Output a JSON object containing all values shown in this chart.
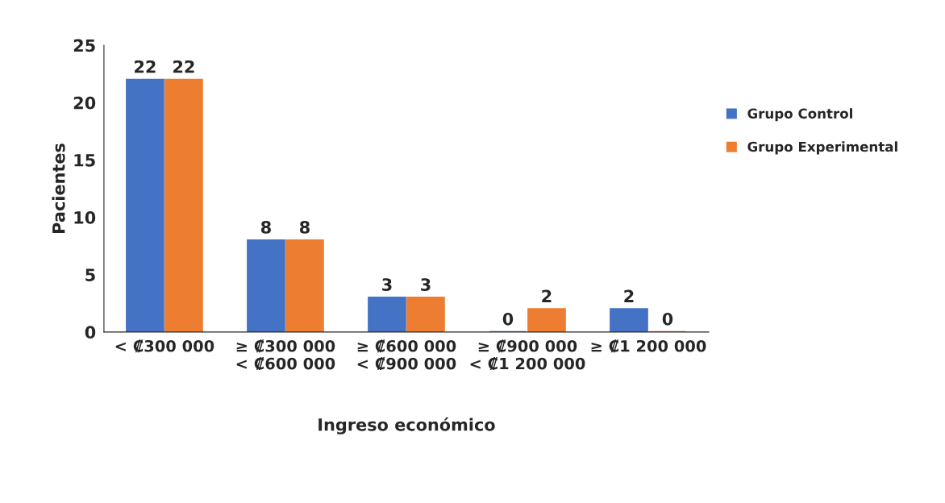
{
  "chart_data": {
    "type": "bar",
    "xlabel": "Ingreso económico",
    "ylabel": "Pacientes",
    "categories": [
      "< ₡300 000",
      "≥ ₡300 000\n< ₡600 000",
      "≥ ₡600 000\n< ₡900 000",
      "≥ ₡900 000\n< ₡1 200 000",
      "≥ ₡1 200 000"
    ],
    "series": [
      {
        "name": "Grupo Control",
        "color": "#4472c4",
        "values": [
          22,
          8,
          3,
          0,
          2
        ]
      },
      {
        "name": "Grupo Experimental",
        "color": "#ed7d31",
        "values": [
          22,
          8,
          3,
          2,
          0
        ]
      }
    ],
    "ylim": [
      0,
      25
    ],
    "yticks": [
      0,
      5,
      10,
      15,
      20,
      25
    ],
    "grid": false,
    "legend": "right",
    "data_labels": true
  }
}
